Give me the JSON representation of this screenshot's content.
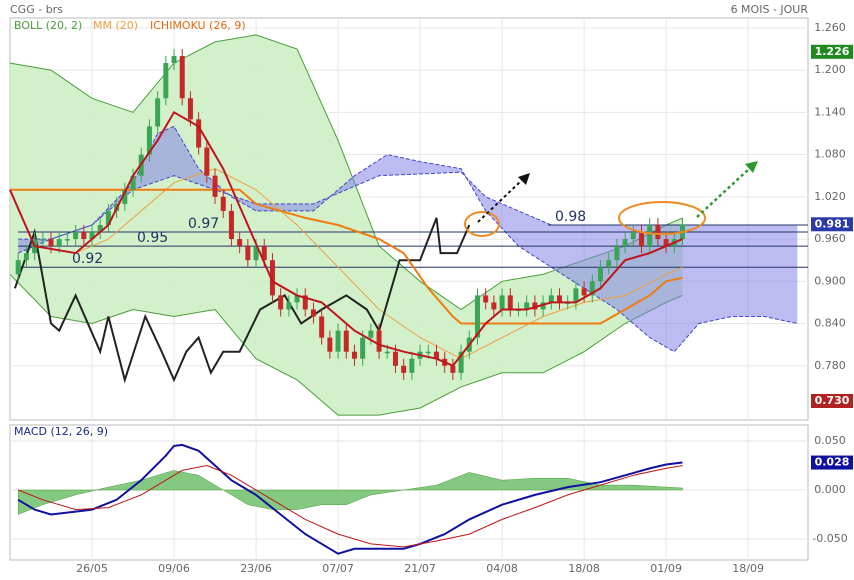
{
  "chart_data": [
    {
      "type": "candlestick",
      "title": "CGG - brs",
      "subtitle": "6 MOIS - JOUR",
      "xlim": [
        0,
        97.3
      ],
      "xticks": [
        {
          "value": 10,
          "label": "26/05"
        },
        {
          "value": 20,
          "label": "09/06"
        },
        {
          "value": 30,
          "label": "23/06"
        },
        {
          "value": 40,
          "label": "07/07"
        },
        {
          "value": 50,
          "label": "21/07"
        },
        {
          "value": 60,
          "label": "04/08"
        },
        {
          "value": 70,
          "label": "18/08"
        },
        {
          "value": 80,
          "label": "01/09"
        },
        {
          "value": 90,
          "label": "18/09"
        }
      ],
      "ylim": [
        0.703,
        1.274
      ],
      "yticks": [
        {
          "value": 1.26,
          "label": "1.260"
        },
        {
          "value": 1.2,
          "label": "1.200"
        },
        {
          "value": 1.14,
          "label": "1.140"
        },
        {
          "value": 1.08,
          "label": "1.080"
        },
        {
          "value": 1.02,
          "label": "1.020"
        },
        {
          "value": 0.96,
          "label": "0.960"
        },
        {
          "value": 0.9,
          "label": "0.900"
        },
        {
          "value": 0.84,
          "label": "0.840"
        },
        {
          "value": 0.78,
          "label": "0.780"
        }
      ],
      "grid": true,
      "up_color": "#3aa655",
      "down_color": "#c62828",
      "x": [
        1,
        2,
        3,
        4,
        5,
        6,
        7,
        8,
        9,
        10,
        11,
        12,
        13,
        14,
        15,
        16,
        17,
        18,
        19,
        20,
        21,
        22,
        23,
        24,
        25,
        26,
        27,
        28,
        29,
        30,
        31,
        32,
        33,
        34,
        35,
        36,
        37,
        38,
        39,
        40,
        41,
        42,
        43,
        44,
        45,
        46,
        47,
        48,
        49,
        50,
        51,
        52,
        53,
        54,
        55,
        56,
        57,
        58,
        59,
        60,
        61,
        62,
        63,
        64,
        65,
        66,
        67,
        68,
        69,
        70,
        71,
        72,
        73,
        74,
        75,
        76,
        77,
        78,
        79,
        80,
        81,
        82
      ],
      "open": [
        0.91,
        0.93,
        0.94,
        0.96,
        0.96,
        0.95,
        0.96,
        0.96,
        0.97,
        0.96,
        0.97,
        0.98,
        1.0,
        1.01,
        1.03,
        1.05,
        1.08,
        1.12,
        1.16,
        1.21,
        1.22,
        1.16,
        1.13,
        1.09,
        1.05,
        1.02,
        1.0,
        0.96,
        0.95,
        0.93,
        0.95,
        0.93,
        0.88,
        0.86,
        0.87,
        0.88,
        0.86,
        0.85,
        0.82,
        0.8,
        0.83,
        0.8,
        0.79,
        0.82,
        0.83,
        0.8,
        0.8,
        0.78,
        0.77,
        0.79,
        0.8,
        0.8,
        0.79,
        0.78,
        0.77,
        0.8,
        0.82,
        0.88,
        0.87,
        0.86,
        0.88,
        0.86,
        0.86,
        0.87,
        0.86,
        0.87,
        0.88,
        0.87,
        0.87,
        0.89,
        0.88,
        0.9,
        0.92,
        0.93,
        0.95,
        0.96,
        0.97,
        0.95,
        0.98,
        0.96,
        0.95,
        0.96
      ],
      "high": [
        0.94,
        0.95,
        0.97,
        0.97,
        0.97,
        0.97,
        0.97,
        0.98,
        0.98,
        0.98,
        0.99,
        1.01,
        1.02,
        1.04,
        1.06,
        1.09,
        1.13,
        1.17,
        1.22,
        1.23,
        1.23,
        1.17,
        1.14,
        1.1,
        1.06,
        1.03,
        1.01,
        0.97,
        0.96,
        0.96,
        0.96,
        0.94,
        0.89,
        0.88,
        0.89,
        0.89,
        0.87,
        0.86,
        0.83,
        0.84,
        0.84,
        0.81,
        0.83,
        0.84,
        0.84,
        0.81,
        0.81,
        0.79,
        0.8,
        0.81,
        0.81,
        0.81,
        0.8,
        0.79,
        0.81,
        0.83,
        0.89,
        0.89,
        0.88,
        0.89,
        0.89,
        0.87,
        0.88,
        0.88,
        0.88,
        0.89,
        0.89,
        0.88,
        0.9,
        0.9,
        0.91,
        0.93,
        0.94,
        0.96,
        0.97,
        0.98,
        0.98,
        0.99,
        0.99,
        0.97,
        0.97,
        0.99
      ],
      "low": [
        0.9,
        0.92,
        0.93,
        0.95,
        0.94,
        0.94,
        0.95,
        0.95,
        0.95,
        0.95,
        0.96,
        0.97,
        0.99,
        1.0,
        1.02,
        1.04,
        1.07,
        1.11,
        1.15,
        1.2,
        1.15,
        1.12,
        1.08,
        1.04,
        1.01,
        0.99,
        0.95,
        0.94,
        0.92,
        0.92,
        0.92,
        0.87,
        0.85,
        0.85,
        0.86,
        0.85,
        0.84,
        0.81,
        0.79,
        0.79,
        0.79,
        0.78,
        0.78,
        0.81,
        0.79,
        0.79,
        0.77,
        0.76,
        0.76,
        0.78,
        0.79,
        0.78,
        0.77,
        0.76,
        0.76,
        0.79,
        0.81,
        0.86,
        0.85,
        0.85,
        0.85,
        0.85,
        0.85,
        0.85,
        0.85,
        0.86,
        0.86,
        0.86,
        0.86,
        0.87,
        0.87,
        0.89,
        0.91,
        0.92,
        0.94,
        0.95,
        0.94,
        0.94,
        0.95,
        0.94,
        0.94,
        0.95
      ],
      "close": [
        0.93,
        0.94,
        0.96,
        0.96,
        0.95,
        0.96,
        0.96,
        0.97,
        0.96,
        0.97,
        0.98,
        1.0,
        1.01,
        1.03,
        1.05,
        1.08,
        1.12,
        1.16,
        1.21,
        1.22,
        1.16,
        1.13,
        1.09,
        1.05,
        1.02,
        1.0,
        0.96,
        0.95,
        0.93,
        0.95,
        0.93,
        0.88,
        0.86,
        0.87,
        0.88,
        0.86,
        0.85,
        0.82,
        0.8,
        0.83,
        0.8,
        0.79,
        0.82,
        0.83,
        0.8,
        0.8,
        0.78,
        0.77,
        0.79,
        0.8,
        0.8,
        0.79,
        0.78,
        0.77,
        0.8,
        0.82,
        0.88,
        0.87,
        0.86,
        0.88,
        0.86,
        0.86,
        0.87,
        0.86,
        0.87,
        0.88,
        0.87,
        0.87,
        0.89,
        0.88,
        0.9,
        0.92,
        0.93,
        0.95,
        0.96,
        0.97,
        0.95,
        0.98,
        0.96,
        0.95,
        0.96,
        0.981
      ],
      "bollinger": {
        "name": "BOLL (20, 2)",
        "color": "#4a9e3a",
        "fill": "#cdeec4",
        "x": [
          0,
          5,
          10,
          15,
          20,
          25,
          30,
          35,
          40,
          45,
          50,
          55,
          60,
          65,
          70,
          75,
          80,
          82
        ],
        "upper": [
          1.21,
          1.2,
          1.16,
          1.14,
          1.21,
          1.24,
          1.25,
          1.23,
          1.1,
          0.95,
          0.9,
          0.86,
          0.9,
          0.91,
          0.93,
          0.95,
          0.98,
          0.99
        ],
        "lower": [
          0.91,
          0.85,
          0.84,
          0.86,
          0.85,
          0.86,
          0.79,
          0.76,
          0.71,
          0.71,
          0.72,
          0.75,
          0.77,
          0.77,
          0.8,
          0.84,
          0.87,
          0.88
        ]
      },
      "mm": {
        "name": "MM (20)",
        "color": "#f0a040",
        "x": [
          8,
          12,
          15,
          20,
          25,
          30,
          35,
          40,
          45,
          50,
          55,
          60,
          65,
          70,
          75,
          80,
          82
        ],
        "values": [
          0.94,
          0.96,
          0.99,
          1.04,
          1.06,
          1.03,
          0.98,
          0.92,
          0.86,
          0.82,
          0.79,
          0.82,
          0.85,
          0.87,
          0.88,
          0.91,
          0.92
        ]
      },
      "ichimoku": {
        "name": "ICHIMOKU (26, 9)",
        "color": "#e06a10",
        "cloud_color": "#7a7ae8",
        "tenkan": {
          "color": "#c0141c",
          "x": [
            0,
            3,
            8,
            12,
            15,
            18,
            20,
            23,
            26,
            29,
            32,
            35,
            38,
            40,
            42,
            45,
            48,
            52,
            54,
            56,
            58,
            60,
            63,
            66,
            69,
            72,
            75,
            78,
            82
          ],
          "values": [
            1.03,
            0.95,
            0.94,
            0.98,
            1.05,
            1.1,
            1.14,
            1.12,
            1.06,
            0.98,
            0.9,
            0.88,
            0.87,
            0.85,
            0.83,
            0.81,
            0.8,
            0.79,
            0.78,
            0.81,
            0.84,
            0.86,
            0.86,
            0.87,
            0.87,
            0.89,
            0.93,
            0.94,
            0.96
          ]
        },
        "kijun": {
          "color": "#f07c10",
          "x": [
            0,
            28,
            30,
            33,
            36,
            40,
            45,
            48,
            51,
            54,
            55,
            60,
            65,
            72,
            75,
            78,
            80,
            82
          ],
          "values": [
            1.03,
            1.03,
            1.01,
            1.0,
            0.99,
            0.98,
            0.96,
            0.94,
            0.89,
            0.85,
            0.84,
            0.84,
            0.84,
            0.84,
            0.86,
            0.88,
            0.9,
            0.905
          ]
        },
        "chikou": {
          "color": "#222222",
          "x": [
            0.6,
            3,
            5,
            6,
            8,
            11,
            12,
            14,
            16.5,
            18.5,
            20,
            21.5,
            23,
            24.5,
            26,
            28,
            30.5,
            33.5,
            35.5,
            38,
            41,
            43.5,
            45,
            47.5,
            50,
            52,
            52.5,
            54.5,
            56
          ],
          "values": [
            0.89,
            0.97,
            0.84,
            0.83,
            0.88,
            0.8,
            0.85,
            0.76,
            0.85,
            0.8,
            0.76,
            0.8,
            0.82,
            0.77,
            0.8,
            0.8,
            0.86,
            0.88,
            0.84,
            0.86,
            0.88,
            0.86,
            0.83,
            0.93,
            0.93,
            0.99,
            0.94,
            0.94,
            0.98
          ]
        },
        "span_a": {
          "x": [
            1,
            5,
            10,
            15,
            18,
            20,
            23,
            27,
            30,
            37,
            42,
            46,
            50,
            55,
            58,
            62,
            66,
            70,
            74,
            78,
            81,
            84,
            88,
            92,
            96
          ],
          "values": [
            0.96,
            0.96,
            0.98,
            1.04,
            1.11,
            1.12,
            1.06,
            1.02,
            1.0,
            1.0,
            1.05,
            1.08,
            1.07,
            1.06,
            1.0,
            0.95,
            0.92,
            0.89,
            0.86,
            0.82,
            0.8,
            0.84,
            0.85,
            0.85,
            0.84
          ]
        },
        "span_b": {
          "x": [
            1,
            5,
            10,
            15,
            20,
            25,
            30,
            37,
            45,
            55,
            58,
            62,
            66,
            70,
            96
          ],
          "values": [
            0.94,
            0.96,
            0.98,
            1.03,
            1.05,
            1.03,
            1.01,
            1.01,
            1.05,
            1.055,
            1.02,
            1.0,
            0.98,
            0.98,
            0.98
          ]
        }
      },
      "levels": [
        0.98,
        0.97,
        0.95,
        0.92
      ],
      "price_labels": [
        {
          "value": 1.226,
          "label": "1.226",
          "color": "#1e8a1e"
        },
        {
          "value": 0.981,
          "label": "0.981",
          "color": "#2a3aa8"
        },
        {
          "value": 0.73,
          "label": "0.730",
          "color": "#b22222"
        }
      ]
    },
    {
      "type": "line",
      "title": "MACD (12, 26, 9)",
      "ylim": [
        -0.0714,
        0.0663
      ],
      "yticks": [
        {
          "value": 0.05,
          "label": "0.050"
        },
        {
          "value": 0,
          "label": "0.000"
        },
        {
          "value": -0.05,
          "label": "-0.050"
        }
      ],
      "series": [
        {
          "color": "#1010a0",
          "x": [
            1,
            3,
            5,
            8,
            10,
            13,
            16,
            19,
            20,
            21,
            23,
            25,
            27,
            30,
            33,
            36,
            39,
            40,
            42,
            45,
            48,
            50,
            53,
            56,
            60,
            64,
            68,
            72,
            75,
            78,
            80,
            82
          ],
          "values": [
            -0.01,
            -0.02,
            -0.025,
            -0.022,
            -0.02,
            -0.01,
            0.01,
            0.035,
            0.045,
            0.046,
            0.04,
            0.025,
            0.01,
            -0.005,
            -0.025,
            -0.045,
            -0.06,
            -0.065,
            -0.06,
            -0.06,
            -0.06,
            -0.055,
            -0.045,
            -0.03,
            -0.015,
            -0.005,
            0.003,
            0.008,
            0.015,
            0.022,
            0.026,
            0.028
          ]
        },
        {
          "color": "#c0141c",
          "x": [
            1,
            4,
            8,
            12,
            16,
            19,
            21,
            24,
            27,
            30,
            33,
            36,
            40,
            44,
            48,
            52,
            56,
            60,
            64,
            68,
            72,
            76,
            80,
            82
          ],
          "values": [
            0,
            -0.01,
            -0.02,
            -0.018,
            -0.005,
            0.01,
            0.02,
            0.025,
            0.015,
            0,
            -0.015,
            -0.03,
            -0.045,
            -0.055,
            -0.058,
            -0.052,
            -0.045,
            -0.03,
            -0.018,
            -0.005,
            0.005,
            0.015,
            0.022,
            0.025
          ]
        }
      ],
      "histogram": {
        "color": "#6fbf6a",
        "x": [
          1,
          4,
          8,
          12,
          16,
          20,
          23,
          26,
          29,
          32,
          35,
          38,
          41,
          44,
          48,
          52,
          56,
          60,
          64,
          68,
          72,
          76,
          80,
          82
        ],
        "values": [
          -0.025,
          -0.015,
          -0.005,
          0.003,
          0.01,
          0.02,
          0.015,
          0,
          -0.015,
          -0.02,
          -0.02,
          -0.015,
          -0.015,
          -0.005,
          0,
          0.005,
          0.018,
          0.01,
          0.012,
          0.012,
          0.005,
          0.005,
          0.003,
          0.002
        ]
      },
      "last_label": {
        "value": 0.028,
        "label": "0.028",
        "color": "#1010a0"
      }
    }
  ]
}
